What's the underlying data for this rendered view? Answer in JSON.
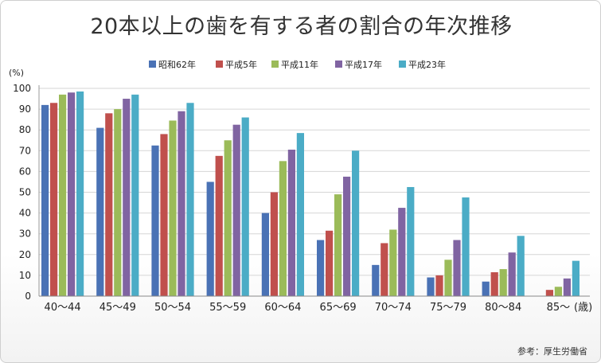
{
  "chart_data": {
    "type": "bar",
    "title": "20本以上の歯を有する者の割合の年次推移",
    "y_unit": "(%)",
    "x_unit": "(歳)",
    "ylim": [
      0,
      100
    ],
    "y_ticks": [
      "0",
      "10",
      "20",
      "30",
      "40",
      "50",
      "60",
      "70",
      "80",
      "90",
      "100"
    ],
    "grid": true,
    "legend_position": "top",
    "categories": [
      "40～44",
      "45～49",
      "50～54",
      "55～59",
      "60～64",
      "65～69",
      "70～74",
      "75～79",
      "80～84",
      "85～"
    ],
    "series": [
      {
        "name": "昭和62年",
        "color": "#4a72b5",
        "values": [
          92,
          81,
          72.5,
          55,
          40,
          27,
          15,
          9,
          7,
          null
        ]
      },
      {
        "name": "平成5年",
        "color": "#c0504d",
        "values": [
          93,
          88,
          78,
          67.5,
          50,
          31.5,
          25.5,
          10,
          11.5,
          3
        ]
      },
      {
        "name": "平成11年",
        "color": "#9bbb59",
        "values": [
          97,
          90,
          84.5,
          75,
          65,
          49,
          32,
          17.5,
          13,
          4.5
        ]
      },
      {
        "name": "平成17年",
        "color": "#8064a2",
        "values": [
          98,
          95,
          89,
          82.5,
          70.5,
          57.5,
          42.5,
          27,
          21,
          8.5
        ]
      },
      {
        "name": "平成23年",
        "color": "#4bacc6",
        "values": [
          98.5,
          97,
          93,
          86,
          78.5,
          70,
          52.5,
          47.5,
          29,
          17
        ]
      }
    ]
  },
  "source_note": "参考：厚生労働省"
}
